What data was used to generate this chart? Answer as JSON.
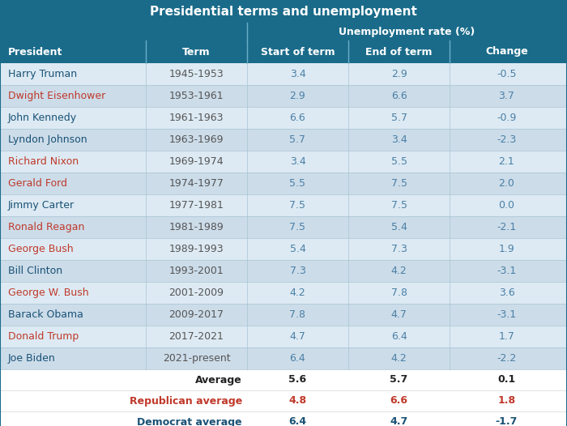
{
  "title": "Presidential terms and unemployment",
  "col_headers": [
    "President",
    "Term",
    "Start of term",
    "End of term",
    "Change"
  ],
  "subheader": "Unemployment rate (%)",
  "presidents": [
    {
      "name": "Harry Truman",
      "term": "1945-1953",
      "start": "3.4",
      "end": "2.9",
      "change": "-0.5",
      "party": "Democrat"
    },
    {
      "name": "Dwight Eisenhower",
      "term": "1953-1961",
      "start": "2.9",
      "end": "6.6",
      "change": "3.7",
      "party": "Republican"
    },
    {
      "name": "John Kennedy",
      "term": "1961-1963",
      "start": "6.6",
      "end": "5.7",
      "change": "-0.9",
      "party": "Democrat"
    },
    {
      "name": "Lyndon Johnson",
      "term": "1963-1969",
      "start": "5.7",
      "end": "3.4",
      "change": "-2.3",
      "party": "Democrat"
    },
    {
      "name": "Richard Nixon",
      "term": "1969-1974",
      "start": "3.4",
      "end": "5.5",
      "change": "2.1",
      "party": "Republican"
    },
    {
      "name": "Gerald Ford",
      "term": "1974-1977",
      "start": "5.5",
      "end": "7.5",
      "change": "2.0",
      "party": "Republican"
    },
    {
      "name": "Jimmy Carter",
      "term": "1977-1981",
      "start": "7.5",
      "end": "7.5",
      "change": "0.0",
      "party": "Democrat"
    },
    {
      "name": "Ronald Reagan",
      "term": "1981-1989",
      "start": "7.5",
      "end": "5.4",
      "change": "-2.1",
      "party": "Republican"
    },
    {
      "name": "George Bush",
      "term": "1989-1993",
      "start": "5.4",
      "end": "7.3",
      "change": "1.9",
      "party": "Republican"
    },
    {
      "name": "Bill Clinton",
      "term": "1993-2001",
      "start": "7.3",
      "end": "4.2",
      "change": "-3.1",
      "party": "Democrat"
    },
    {
      "name": "George W. Bush",
      "term": "2001-2009",
      "start": "4.2",
      "end": "7.8",
      "change": "3.6",
      "party": "Republican"
    },
    {
      "name": "Barack Obama",
      "term": "2009-2017",
      "start": "7.8",
      "end": "4.7",
      "change": "-3.1",
      "party": "Democrat"
    },
    {
      "name": "Donald Trump",
      "term": "2017-2021",
      "start": "4.7",
      "end": "6.4",
      "change": "1.7",
      "party": "Republican"
    },
    {
      "name": "Joe Biden",
      "term": "2021-present",
      "start": "6.4",
      "end": "4.2",
      "change": "-2.2",
      "party": "Democrat"
    }
  ],
  "averages": [
    {
      "label": "Average",
      "start": "5.6",
      "end": "5.7",
      "change": "0.1",
      "color": "#222222"
    },
    {
      "label": "Republican average",
      "start": "4.8",
      "end": "6.6",
      "change": "1.8",
      "color": "#c0392b"
    },
    {
      "label": "Democrat average",
      "start": "6.4",
      "end": "4.7",
      "change": "-1.7",
      "color": "#1a5276"
    }
  ],
  "header_bg": "#1a6b8a",
  "header_text_color": "#ffffff",
  "row_colors": [
    "#ddeaf3",
    "#ccdce9"
  ],
  "democrat_name_color": "#1a5276",
  "republican_name_color": "#c0392b",
  "term_color": "#555555",
  "data_value_color": "#4a7fa5",
  "title_fontsize": 11,
  "header_fontsize": 9,
  "data_fontsize": 9,
  "avg_fontsize": 9
}
